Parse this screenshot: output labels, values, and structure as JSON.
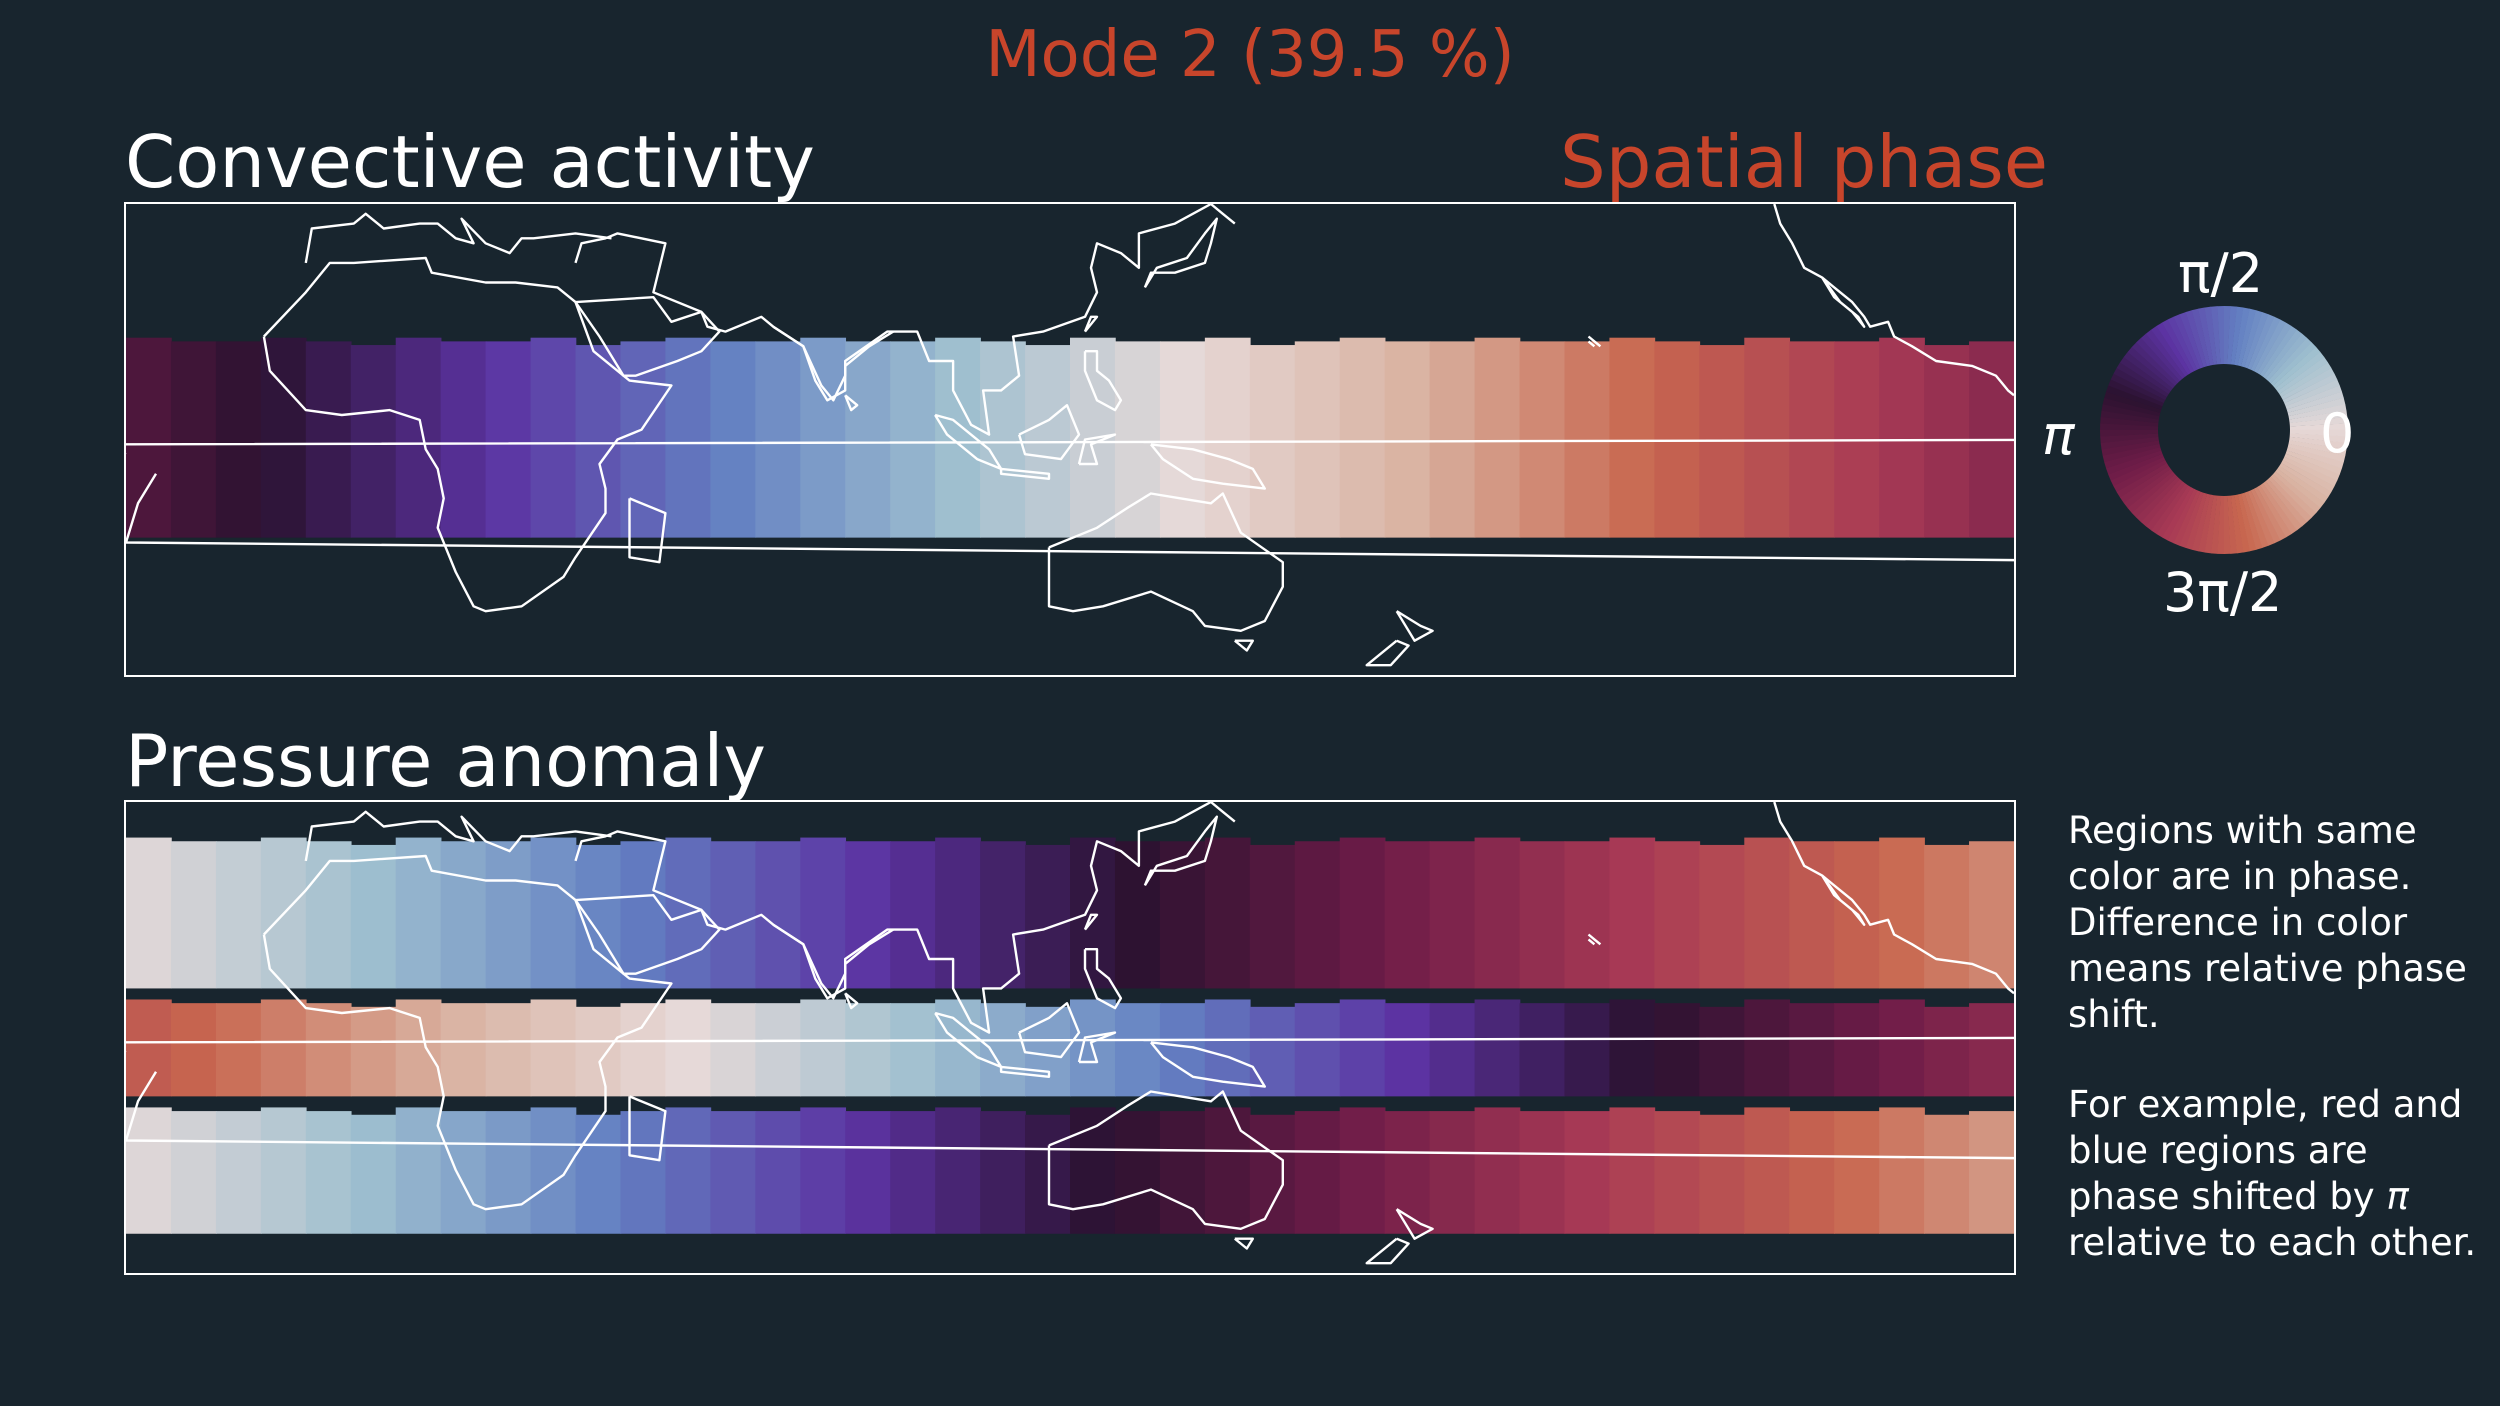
{
  "header": {
    "title": "Mode 2 (39.5 %)",
    "title_color": "#c8452b"
  },
  "panels": [
    {
      "id": "convective",
      "title": "Convective activity",
      "subtitle": "Spatial phase",
      "bands": [
        {
          "lat_north": 20,
          "lat_south": -20,
          "phase_start_deg": 180,
          "phase_step_deg": -7.8
        }
      ]
    },
    {
      "id": "pressure",
      "title": "Pressure anomaly",
      "bands": [
        {
          "lat_north": 40,
          "lat_south": 10,
          "phase_start_deg": 5,
          "phase_step_deg": 7.1
        },
        {
          "lat_north": 7,
          "lat_south": -12,
          "phase_start_deg": 270,
          "phase_step_deg": 7.5
        },
        {
          "lat_north": -15,
          "lat_south": -40,
          "phase_start_deg": 5,
          "phase_step_deg": 7.3
        }
      ]
    }
  ],
  "map": {
    "lon_range": [
      -40,
      275
    ],
    "lat_range": [
      -48,
      48
    ],
    "coastline_color": "#ffffff",
    "ocean_color": "#18252e"
  },
  "legend": {
    "label_right": "0",
    "label_top": "π/2",
    "label_left": "π",
    "label_bottom": "3π/2"
  },
  "note": {
    "paragraph_1": "Regions with same color are in phase. Difference in color means relative phase shift.",
    "paragraph_2_prefix": "For example, red and blue regions are phase shifted by ",
    "paragraph_2_symbol": "π",
    "paragraph_2_suffix": " relative to each other."
  },
  "colormap_stops": [
    "#e6d9d8",
    "#9ebfcf",
    "#6380c2",
    "#5c33a2",
    "#2b1230",
    "#6e1c48",
    "#a83a55",
    "#c8674f",
    "#d9b2a1",
    "#e6d9d8"
  ]
}
